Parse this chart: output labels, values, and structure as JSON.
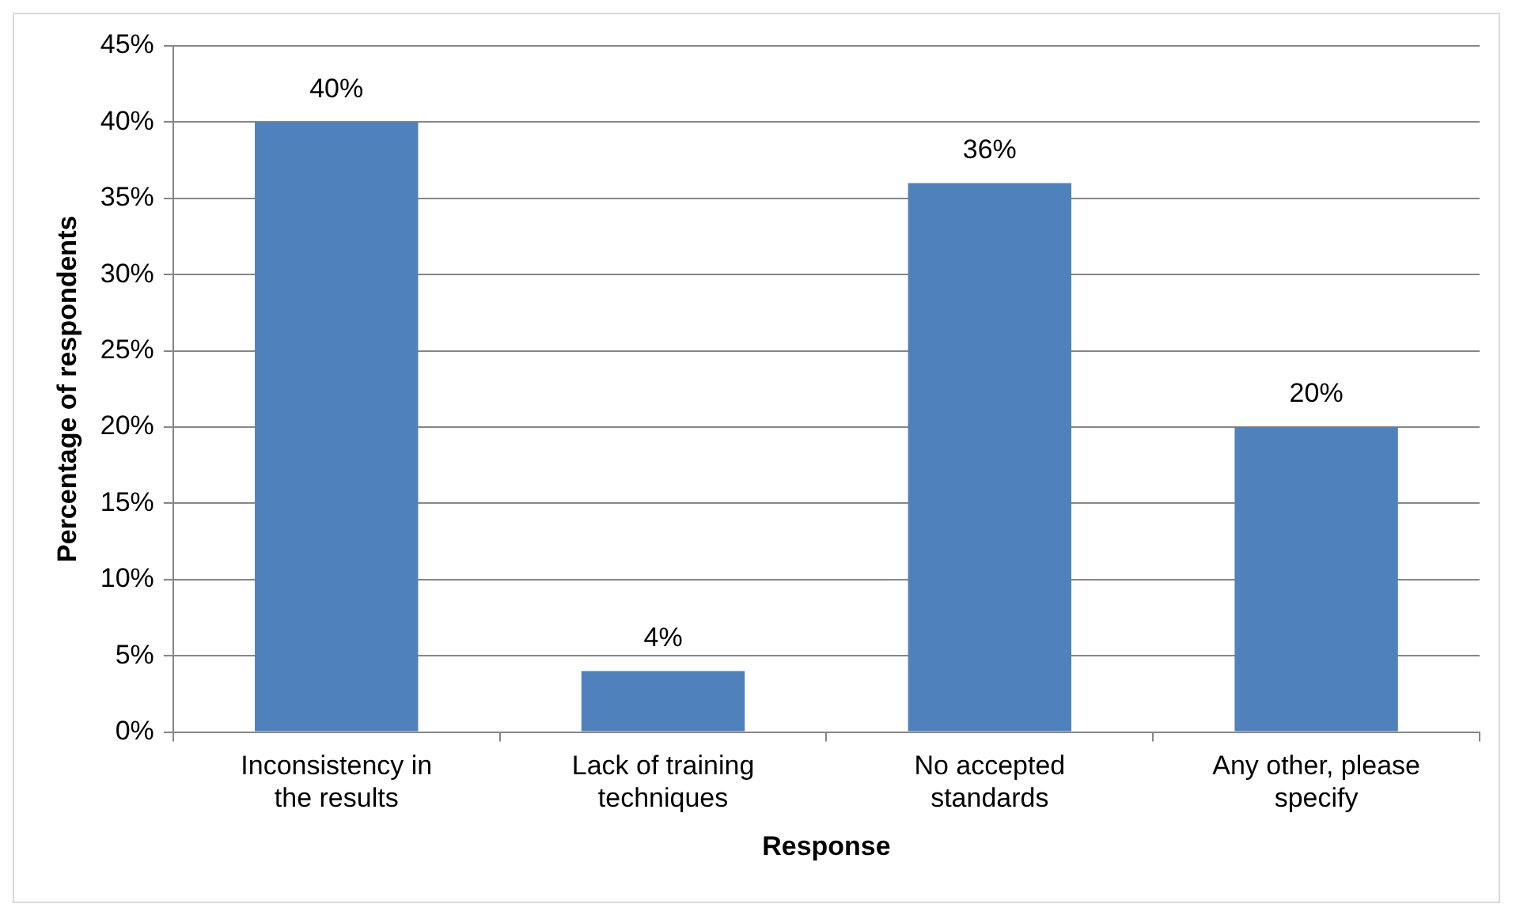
{
  "chart_data": {
    "type": "bar",
    "xlabel": "Response",
    "ylabel": "Percentage of respondents",
    "categories": [
      "Inconsistency in the results",
      "Lack of training techniques",
      "No accepted standards",
      "Any other, please specify"
    ],
    "values": [
      40,
      4,
      36,
      20
    ],
    "value_labels": [
      "40%",
      "4%",
      "36%",
      "20%"
    ],
    "color": "#4f81bd",
    "ylim": [
      0,
      45
    ],
    "yticks": [
      {
        "value": 0,
        "label": "0%"
      },
      {
        "value": 5,
        "label": "5%"
      },
      {
        "value": 10,
        "label": "10%"
      },
      {
        "value": 15,
        "label": "15%"
      },
      {
        "value": 20,
        "label": "20%"
      },
      {
        "value": 25,
        "label": "25%"
      },
      {
        "value": 30,
        "label": "30%"
      },
      {
        "value": 35,
        "label": "35%"
      },
      {
        "value": 40,
        "label": "40%"
      },
      {
        "value": 45,
        "label": "45%"
      }
    ],
    "grid": "y"
  }
}
